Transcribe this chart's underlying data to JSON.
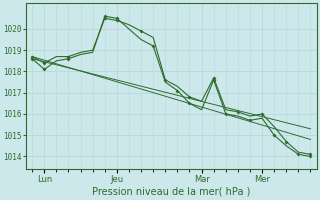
{
  "bg_color": "#cde8eb",
  "grid_color": "#b8d8dc",
  "line_color": "#2d6b2d",
  "xlabel": "Pression niveau de la mer( hPa )",
  "ylim": [
    1013.4,
    1021.2
  ],
  "yticks": [
    1014,
    1015,
    1016,
    1017,
    1018,
    1019,
    1020
  ],
  "xtick_labels": [
    "Lun",
    "Jeu",
    "Mar",
    "Mer"
  ],
  "xtick_positions": [
    1,
    7,
    14,
    19
  ],
  "xlim": [
    -0.5,
    23.5
  ],
  "series1_x": [
    0,
    1,
    2,
    3,
    4,
    5,
    6,
    7,
    8,
    9,
    10,
    11,
    12,
    13,
    14,
    15,
    16,
    17,
    18,
    19,
    20,
    21,
    22,
    23
  ],
  "series1_y": [
    1018.7,
    1018.4,
    1018.7,
    1018.7,
    1018.9,
    1019.0,
    1020.5,
    1020.4,
    1020.2,
    1019.9,
    1019.6,
    1017.6,
    1017.3,
    1016.8,
    1016.6,
    1017.7,
    1016.2,
    1016.1,
    1015.9,
    1016.0,
    1015.4,
    1014.7,
    1014.2,
    1014.1
  ],
  "series2_x": [
    0,
    1,
    2,
    3,
    4,
    5,
    6,
    7,
    8,
    9,
    10,
    11,
    12,
    13,
    14,
    15,
    16,
    17,
    18,
    19,
    20,
    21,
    22,
    23
  ],
  "series2_y": [
    1018.6,
    1018.1,
    1018.5,
    1018.6,
    1018.8,
    1018.9,
    1020.6,
    1020.5,
    1020.0,
    1019.5,
    1019.2,
    1017.5,
    1017.1,
    1016.5,
    1016.2,
    1017.6,
    1016.0,
    1015.9,
    1015.7,
    1015.8,
    1015.0,
    1014.5,
    1014.1,
    1014.0
  ],
  "trend1_x": [
    0,
    23
  ],
  "trend1_y": [
    1018.7,
    1014.8
  ],
  "trend2_x": [
    0,
    23
  ],
  "trend2_y": [
    1018.6,
    1015.3
  ],
  "markers1_x": [
    0,
    1,
    3,
    6,
    7,
    9,
    11,
    13,
    15,
    17,
    19,
    21,
    23
  ],
  "markers1_y": [
    1018.7,
    1018.4,
    1018.7,
    1020.5,
    1020.4,
    1019.9,
    1017.6,
    1016.8,
    1017.7,
    1016.1,
    1016.0,
    1014.7,
    1014.1
  ],
  "markers2_x": [
    0,
    1,
    3,
    6,
    7,
    10,
    12,
    13,
    15,
    16,
    18,
    20,
    22,
    23
  ],
  "markers2_y": [
    1018.6,
    1018.1,
    1018.6,
    1020.6,
    1020.5,
    1019.2,
    1017.1,
    1016.5,
    1017.6,
    1016.0,
    1015.7,
    1015.0,
    1014.1,
    1014.0
  ]
}
